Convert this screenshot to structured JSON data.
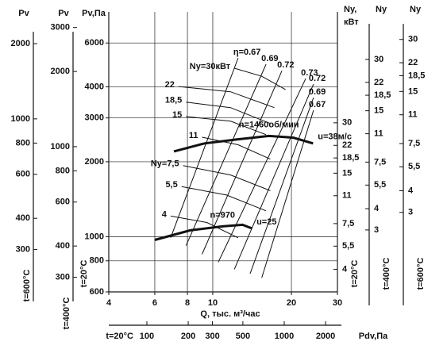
{
  "chart_data": {
    "type": "line",
    "x_scale": "log",
    "y_scale": "log",
    "grid": true,
    "color": "#111",
    "xlabel": "Q, тыс. м³/час",
    "ylabel": "Pv,Па",
    "y_temperature": "t=20°C",
    "xlim": [
      4,
      30
    ],
    "xticks": [
      4,
      6,
      8,
      10,
      20,
      30
    ],
    "ylim": [
      600,
      8000
    ],
    "yticks": [
      600,
      800,
      1000,
      2000,
      3000,
      4000,
      6000
    ],
    "series": [
      {
        "name": "n=1460об/мин",
        "end_label": "u=38м/с",
        "x": [
          7.1,
          9.3,
          12.4,
          16.4,
          20.3,
          24.2
        ],
        "values": [
          2200,
          2370,
          2460,
          2540,
          2500,
          2370
        ]
      },
      {
        "name": "n=970",
        "end_label": "u=25",
        "x": [
          6,
          8.2,
          10.9,
          13,
          14.1
        ],
        "values": [
          970,
          1060,
          1100,
          1116,
          1080
        ]
      }
    ],
    "efficiency_lines": [
      {
        "name": "η=0.67",
        "x": [
          12.5,
          6.9
        ],
        "values": [
          5220,
          990
        ]
      },
      {
        "name": "0.69",
        "x": [
          16.0,
          7.9
        ],
        "values": [
          4930,
          920
        ]
      },
      {
        "name": "0.72",
        "x": [
          18.4,
          9.1
        ],
        "values": [
          4640,
          850
        ]
      },
      {
        "name": "0.73",
        "x": [
          22.7,
          10.5
        ],
        "values": [
          4320,
          790
        ]
      },
      {
        "name": "0.72",
        "x": [
          24.3,
          12.1
        ],
        "values": [
          4100,
          740
        ]
      },
      {
        "name": "0.69",
        "x": [
          24.3,
          13.9
        ],
        "values": [
          3620,
          710
        ]
      },
      {
        "name": "0.67",
        "x": [
          24.3,
          15.4
        ],
        "values": [
          3220,
          684
        ]
      }
    ],
    "power_lines": [
      {
        "name": "Ny=30кВт",
        "x": [
          12.1,
          15.4,
          19.0
        ],
        "values": [
          4750,
          4410,
          3900
        ]
      },
      {
        "name": "22",
        "x": [
          7.4,
          11.7,
          17.2
        ],
        "values": [
          4010,
          3820,
          3300
        ]
      },
      {
        "name": "18,5",
        "x": [
          7.9,
          11.7,
          16.6
        ],
        "values": [
          3470,
          3300,
          2850
        ]
      },
      {
        "name": "15",
        "x": [
          7.9,
          11.7,
          16.0
        ],
        "values": [
          3040,
          2910,
          2570
        ]
      },
      {
        "name": "11",
        "x": [
          9.1,
          12.5,
          16.6
        ],
        "values": [
          2510,
          2340,
          2050
        ]
      },
      {
        "name": "Ny=7,5",
        "x": [
          7.7,
          11.7,
          16.6
        ],
        "values": [
          1930,
          1770,
          1530
        ]
      },
      {
        "name": "5,5",
        "x": [
          7.6,
          11.3,
          16.0
        ],
        "values": [
          1590,
          1470,
          1270
        ]
      },
      {
        "name": "4",
        "x": [
          6.9,
          9.5,
          12.5
        ],
        "values": [
          1210,
          1140,
          990
        ]
      }
    ],
    "left_axes": [
      {
        "label": "Pv",
        "temperature": "t=600°C",
        "ylim": [
          203,
          2680
        ],
        "yticks": [
          300,
          400,
          600,
          800,
          1000,
          2000
        ]
      },
      {
        "label": "Pv",
        "temperature": "t=400°C",
        "ylim": [
          262,
          3465
        ],
        "yticks": [
          300,
          400,
          600,
          800,
          1000,
          2000,
          3000
        ]
      }
    ],
    "right_axes": [
      {
        "label": "Ny,",
        "unit": "кВт",
        "temperature": "t=20°C",
        "ylim": [
          2.93,
          138
        ],
        "yticks": [
          4,
          {
            "value": 5.5,
            "label": "5,5"
          },
          {
            "value": 7.5,
            "label": "7,5"
          },
          11,
          15,
          {
            "value": 18.5,
            "label": "18,5"
          },
          22,
          30
        ]
      },
      {
        "label": "Ny",
        "temperature": "t=400°C",
        "ylim": [
          1.3,
          57
        ],
        "yticks": [
          3,
          4,
          {
            "value": 5.5,
            "label": "5,5"
          },
          {
            "value": 7.5,
            "label": "7,5"
          },
          11,
          15,
          {
            "value": 18.5,
            "label": "18,5"
          },
          22,
          30
        ]
      },
      {
        "label": "Ny",
        "temperature": "t=600°C",
        "ylim": [
          1.04,
          43.3
        ],
        "yticks": [
          3,
          4,
          {
            "value": 5.5,
            "label": "5,5"
          },
          {
            "value": 7.5,
            "label": "7,5"
          },
          11,
          15,
          {
            "value": 18.5,
            "label": "18,5"
          },
          22,
          30
        ]
      }
    ],
    "bottom_axis": {
      "label": "Pdv,Па",
      "temperature": "t=20°C",
      "xlim": [
        52.8,
        2440
      ],
      "xticks": [
        100,
        200,
        300,
        500,
        1000,
        2000
      ]
    }
  }
}
